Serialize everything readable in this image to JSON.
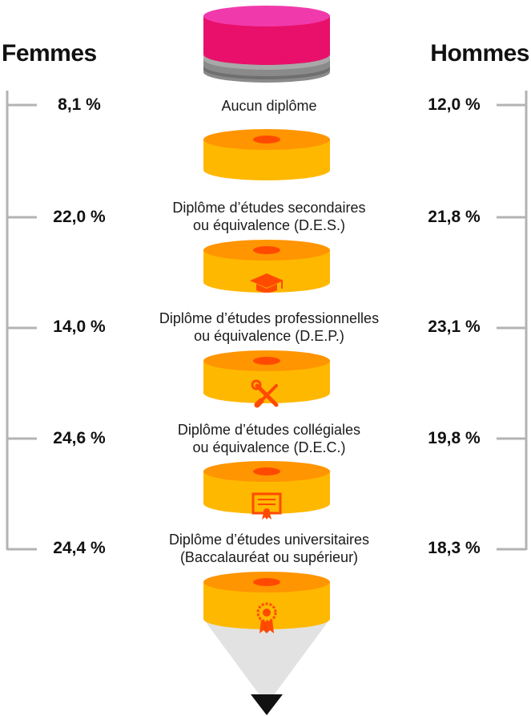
{
  "headers": {
    "left": "Femmes",
    "right": "Hommes"
  },
  "levels": [
    {
      "line1": "Aucun diplôme",
      "line2": "",
      "femmes": "8,1 %",
      "hommes": "12,0 %",
      "icon": "none"
    },
    {
      "line1": "Diplôme d’études secondaires",
      "line2": "ou équivalence (D.E.S.)",
      "femmes": "22,0 %",
      "hommes": "21,8 %",
      "icon": "graduation-cap-icon"
    },
    {
      "line1": "Diplôme d’études professionnelles",
      "line2": "ou équivalence (D.E.P.)",
      "femmes": "14,0 %",
      "hommes": "23,1 %",
      "icon": "wrench-screwdriver-icon"
    },
    {
      "line1": "Diplôme d’études collégiales",
      "line2": "ou équivalence (D.E.C.)",
      "femmes": "24,6 %",
      "hommes": "19,8 %",
      "icon": "certificate-icon"
    },
    {
      "line1": "Diplôme d’études universitaires",
      "line2": "(Baccalauréat ou supérieur)",
      "femmes": "24,4 %",
      "hommes": "18,3 %",
      "icon": "award-medal-icon"
    }
  ],
  "colors": {
    "eraser": "#e8106a",
    "eraser_top": "#f03aab",
    "ferrule": "#9a9a9a",
    "ferrule_band": "#6f6f6f",
    "segment_side": "#ffb800",
    "segment_top": "#ff9500",
    "hole": "#ff4a00",
    "icon": "#ff4a00",
    "tip": "#e2e2e2",
    "lead": "#111111",
    "bracket": "#b3b3b3"
  }
}
